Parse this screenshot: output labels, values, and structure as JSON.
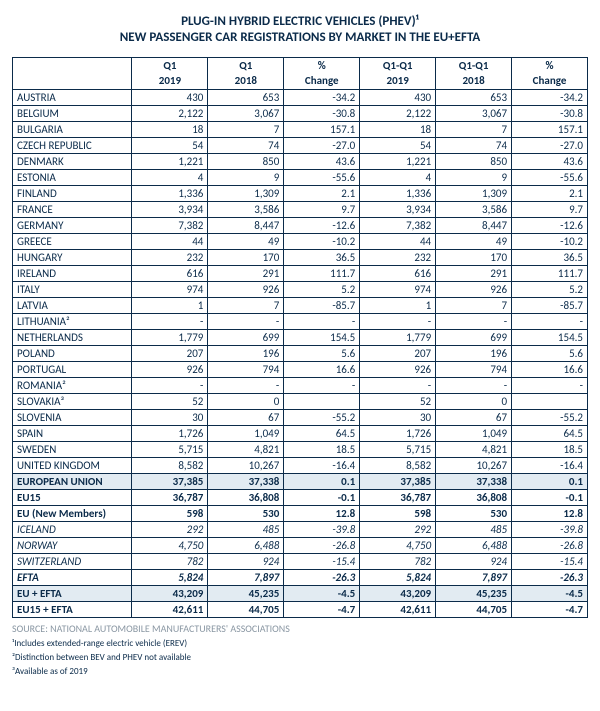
{
  "title_line1": "PLUG-IN HYBRID ELECTRIC VEHICLES (PHEV)¹",
  "title_line2": "NEW PASSENGER CAR REGISTRATIONS BY MARKET IN THE EU+EFTA",
  "header": {
    "blank": "",
    "c1a": "Q1",
    "c1b": "2019",
    "c2a": "Q1",
    "c2b": "2018",
    "c3a": "%",
    "c3b": "Change",
    "c4a": "Q1-Q1",
    "c4b": "2019",
    "c5a": "Q1-Q1",
    "c5b": "2018",
    "c6a": "%",
    "c6b": "Change"
  },
  "rows": [
    {
      "label": "AUSTRIA",
      "v": [
        "430",
        "653",
        "-34.2",
        "430",
        "653",
        "-34.2"
      ]
    },
    {
      "label": "BELGIUM",
      "v": [
        "2,122",
        "3,067",
        "-30.8",
        "2,122",
        "3,067",
        "-30.8"
      ]
    },
    {
      "label": "BULGARIA",
      "v": [
        "18",
        "7",
        "157.1",
        "18",
        "7",
        "157.1"
      ]
    },
    {
      "label": "CZECH REPUBLIC",
      "v": [
        "54",
        "74",
        "-27.0",
        "54",
        "74",
        "-27.0"
      ]
    },
    {
      "label": "DENMARK",
      "v": [
        "1,221",
        "850",
        "43.6",
        "1,221",
        "850",
        "43.6"
      ]
    },
    {
      "label": "ESTONIA",
      "v": [
        "4",
        "9",
        "-55.6",
        "4",
        "9",
        "-55.6"
      ]
    },
    {
      "label": "FINLAND",
      "v": [
        "1,336",
        "1,309",
        "2.1",
        "1,336",
        "1,309",
        "2.1"
      ]
    },
    {
      "label": "FRANCE",
      "v": [
        "3,934",
        "3,586",
        "9.7",
        "3,934",
        "3,586",
        "9.7"
      ]
    },
    {
      "label": "GERMANY",
      "v": [
        "7,382",
        "8,447",
        "-12.6",
        "7,382",
        "8,447",
        "-12.6"
      ]
    },
    {
      "label": "GREECE",
      "v": [
        "44",
        "49",
        "-10.2",
        "44",
        "49",
        "-10.2"
      ]
    },
    {
      "label": "HUNGARY",
      "v": [
        "232",
        "170",
        "36.5",
        "232",
        "170",
        "36.5"
      ]
    },
    {
      "label": "IRELAND",
      "v": [
        "616",
        "291",
        "111.7",
        "616",
        "291",
        "111.7"
      ]
    },
    {
      "label": "ITALY",
      "v": [
        "974",
        "926",
        "5.2",
        "974",
        "926",
        "5.2"
      ]
    },
    {
      "label": "LATVIA",
      "v": [
        "1",
        "7",
        "-85.7",
        "1",
        "7",
        "-85.7"
      ]
    },
    {
      "label": "LITHUANIA²",
      "v": [
        "-",
        "-",
        "-",
        "-",
        "-",
        "-"
      ]
    },
    {
      "label": "NETHERLANDS",
      "v": [
        "1,779",
        "699",
        "154.5",
        "1,779",
        "699",
        "154.5"
      ]
    },
    {
      "label": "POLAND",
      "v": [
        "207",
        "196",
        "5.6",
        "207",
        "196",
        "5.6"
      ]
    },
    {
      "label": "PORTUGAL",
      "v": [
        "926",
        "794",
        "16.6",
        "926",
        "794",
        "16.6"
      ]
    },
    {
      "label": "ROMANIA²",
      "v": [
        "-",
        "-",
        "-",
        "-",
        "-",
        "-"
      ]
    },
    {
      "label": "SLOVAKIA³",
      "v": [
        "52",
        "0",
        "",
        "52",
        "0",
        ""
      ]
    },
    {
      "label": "SLOVENIA",
      "v": [
        "30",
        "67",
        "-55.2",
        "30",
        "67",
        "-55.2"
      ]
    },
    {
      "label": "SPAIN",
      "v": [
        "1,726",
        "1,049",
        "64.5",
        "1,726",
        "1,049",
        "64.5"
      ]
    },
    {
      "label": "SWEDEN",
      "v": [
        "5,715",
        "4,821",
        "18.5",
        "5,715",
        "4,821",
        "18.5"
      ]
    },
    {
      "label": "UNITED KINGDOM",
      "v": [
        "8,582",
        "10,267",
        "-16.4",
        "8,582",
        "10,267",
        "-16.4"
      ]
    },
    {
      "label": "EUROPEAN UNION",
      "v": [
        "37,385",
        "37,338",
        "0.1",
        "37,385",
        "37,338",
        "0.1"
      ],
      "bold": true,
      "hl": true
    },
    {
      "label": "EU15",
      "v": [
        "36,787",
        "36,808",
        "-0.1",
        "36,787",
        "36,808",
        "-0.1"
      ],
      "bold": true
    },
    {
      "label": "EU (New Members)",
      "v": [
        "598",
        "530",
        "12.8",
        "598",
        "530",
        "12.8"
      ],
      "bold": true
    },
    {
      "label": "ICELAND",
      "v": [
        "292",
        "485",
        "-39.8",
        "292",
        "485",
        "-39.8"
      ],
      "italic": true
    },
    {
      "label": "NORWAY",
      "v": [
        "4,750",
        "6,488",
        "-26.8",
        "4,750",
        "6,488",
        "-26.8"
      ],
      "italic": true
    },
    {
      "label": "SWITZERLAND",
      "v": [
        "782",
        "924",
        "-15.4",
        "782",
        "924",
        "-15.4"
      ],
      "italic": true
    },
    {
      "label": "EFTA",
      "v": [
        "5,824",
        "7,897",
        "-26.3",
        "5,824",
        "7,897",
        "-26.3"
      ],
      "bold": true,
      "italic": true
    },
    {
      "label": "EU + EFTA",
      "v": [
        "43,209",
        "45,235",
        "-4.5",
        "43,209",
        "45,235",
        "-4.5"
      ],
      "bold": true,
      "hl": true
    },
    {
      "label": "EU15 + EFTA",
      "v": [
        "42,611",
        "44,705",
        "-4.7",
        "42,611",
        "44,705",
        "-4.7"
      ],
      "bold": true
    }
  ],
  "source": "SOURCE: NATIONAL AUTOMOBILE MANUFACTURERS' ASSOCIATIONS",
  "footnote1": "¹Includes extended-range electric vehicle (EREV)",
  "footnote2": "²Distinction between BEV and PHEV not available",
  "footnote3": "³Available as of 2019"
}
